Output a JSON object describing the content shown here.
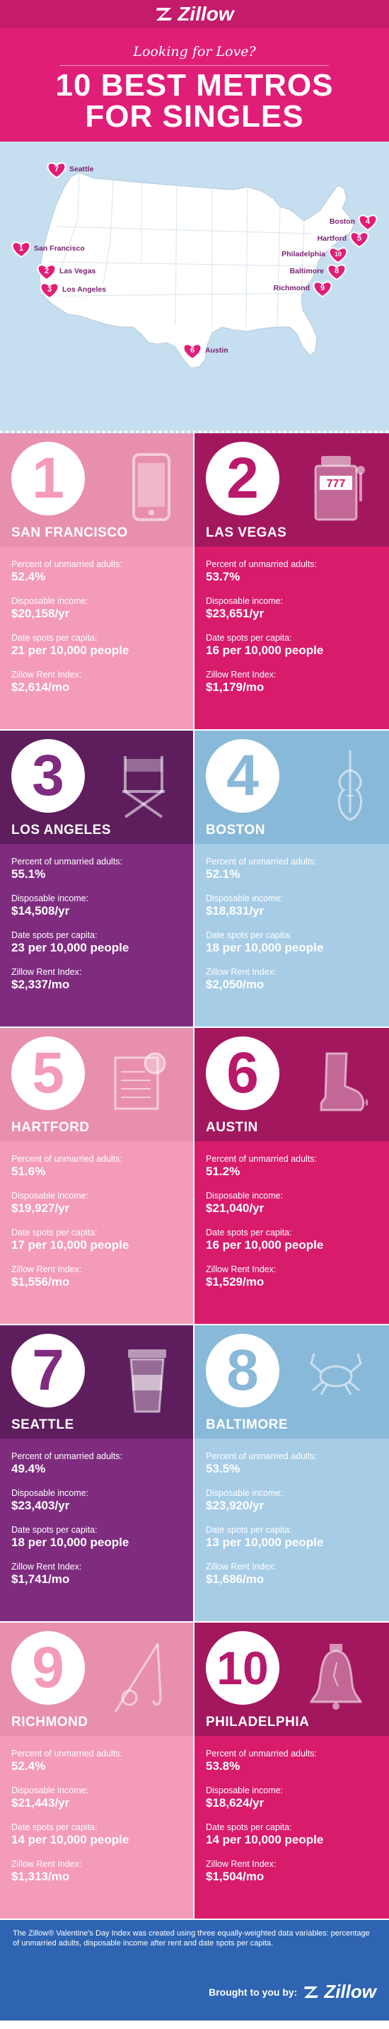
{
  "header": {
    "logo_text": "Zillow",
    "subtitle": "Looking for Love?",
    "title_line1": "10 BEST METROS",
    "title_line2": "FOR SINGLES"
  },
  "map": {
    "pins": [
      {
        "rank": "7",
        "city": "Seattle"
      },
      {
        "rank": "1",
        "city": "San Francisco"
      },
      {
        "rank": "2",
        "city": "Las Vegas"
      },
      {
        "rank": "3",
        "city": "Los Angeles"
      },
      {
        "rank": "6",
        "city": "Austin"
      },
      {
        "rank": "4",
        "city": "Boston"
      },
      {
        "rank": "5",
        "city": "Hartford"
      },
      {
        "rank": "10",
        "city": "Philadelphia"
      },
      {
        "rank": "8",
        "city": "Baltimore"
      },
      {
        "rank": "9",
        "city": "Richmond"
      }
    ]
  },
  "labels": {
    "unmarried": "Percent of unmarried adults:",
    "income": "Disposable income:",
    "date": "Date spots per capita:",
    "rent": "Zillow Rent Index:"
  },
  "cards": [
    {
      "rank": "1",
      "city": "SAN FRANCISCO",
      "unmarried": "52.4%",
      "income": "$20,158/yr",
      "date": "21 per 10,000 people",
      "rent": "$2,614/mo",
      "icon": "phone-icon"
    },
    {
      "rank": "2",
      "city": "LAS VEGAS",
      "unmarried": "53.7%",
      "income": "$23,651/yr",
      "date": "16 per 10,000 people",
      "rent": "$1,179/mo",
      "icon": "slot-machine-icon",
      "slot_text": "777"
    },
    {
      "rank": "3",
      "city": "LOS ANGELES",
      "unmarried": "55.1%",
      "income": "$14,508/yr",
      "date": "23 per 10,000 people",
      "rent": "$2,337/mo",
      "icon": "directors-chair-icon"
    },
    {
      "rank": "4",
      "city": "BOSTON",
      "unmarried": "52.1%",
      "income": "$18,831/yr",
      "date": "18 per 10,000 people",
      "rent": "$2,050/mo",
      "icon": "violin-icon"
    },
    {
      "rank": "5",
      "city": "HARTFORD",
      "unmarried": "51.6%",
      "income": "$19,927/yr",
      "date": "17 per 10,000 people",
      "rent": "$1,556/mo",
      "icon": "scroll-seal-icon"
    },
    {
      "rank": "6",
      "city": "AUSTIN",
      "unmarried": "51.2%",
      "income": "$21,040/yr",
      "date": "16 per 10,000 people",
      "rent": "$1,529/mo",
      "icon": "cowboy-boot-icon"
    },
    {
      "rank": "7",
      "city": "SEATTLE",
      "unmarried": "49.4%",
      "income": "$23,403/yr",
      "date": "18 per 10,000 people",
      "rent": "$1,741/mo",
      "icon": "coffee-cup-icon"
    },
    {
      "rank": "8",
      "city": "BALTIMORE",
      "unmarried": "53.5%",
      "income": "$23,920/yr",
      "date": "13 per 10,000 people",
      "rent": "$1,686/mo",
      "icon": "crab-icon"
    },
    {
      "rank": "9",
      "city": "RICHMOND",
      "unmarried": "52.4%",
      "income": "$21,443/yr",
      "date": "14 per 10,000 people",
      "rent": "$1,313/mo",
      "icon": "fishing-rod-icon"
    },
    {
      "rank": "10",
      "city": "PHILADELPHIA",
      "unmarried": "53.8%",
      "income": "$18,624/yr",
      "date": "14 per 10,000 people",
      "rent": "$1,504/mo",
      "icon": "liberty-bell-icon"
    }
  ],
  "footer": {
    "note": "The Zillow® Valentine's Day Index was created using three equally-weighted data variables: percentage of unmarried adults, disposable income after rent and date spots per capita.",
    "brought_by": "Brought to you by:",
    "logo_text": "Zillow"
  },
  "colors": {
    "pink": "#f39bb8",
    "magenta": "#d81b6b",
    "purple": "#7f2c7f",
    "blue": "#a7cce6",
    "footer": "#2e64b1"
  }
}
